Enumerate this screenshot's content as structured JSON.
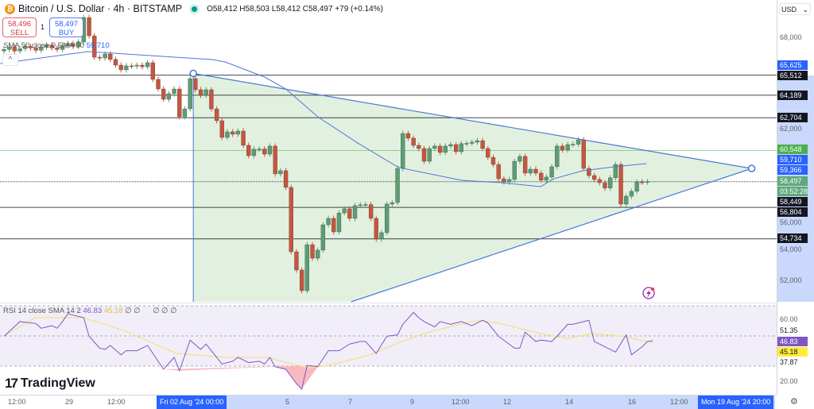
{
  "header": {
    "title": "Bitcoin / U.S. Dollar · 4h · BITSTAMP",
    "ohlc": "O58,412 H58,503 L58,412 C58,497 +79 (+0.14%)",
    "sell_price": "58,496",
    "sell_label": "SELL",
    "buy_price": "58,497",
    "buy_label": "BUY",
    "qty": "1",
    "ma_legend": "SMA 50 close 0 EMA 50",
    "ma_value": "59,710",
    "collapse": "^"
  },
  "rsi_legend": {
    "text": "RSI 14 close SMA 14 2",
    "rsi": "46.83",
    "sma": "45.18",
    "extra1": "∅ ∅",
    "extra2": "∅ ∅ ∅"
  },
  "price_axis": {
    "currency": "USD",
    "ticks": [
      "68,000",
      "62,000",
      "56,000",
      "54,000",
      "52,000"
    ],
    "badges": [
      {
        "v": "65,625",
        "c": "#2962ff"
      },
      {
        "v": "65,512",
        "c": "#131722"
      },
      {
        "v": "64,189",
        "c": "#131722"
      },
      {
        "v": "62,704",
        "c": "#131722"
      },
      {
        "v": "60,548",
        "c": "#4caf50"
      },
      {
        "v": "59,710",
        "c": "#2962ff"
      },
      {
        "v": "59,366",
        "c": "#2962ff"
      },
      {
        "v": "58,497",
        "c": "#5fa87a"
      },
      {
        "v": "58,449",
        "c": "#131722"
      },
      {
        "v": "56,804",
        "c": "#131722"
      },
      {
        "v": "54,734",
        "c": "#131722"
      }
    ],
    "countdown": "03:52:28"
  },
  "rsi_axis": {
    "ticks": [
      "60.00",
      "51.35",
      "37.87",
      "20.00"
    ],
    "rsi_badge": "46.83",
    "sma_badge": "45.18"
  },
  "time_axis": {
    "ticks": [
      "12:00",
      "29",
      "12:00",
      "5",
      "7",
      "9",
      "12:00",
      "12",
      "14",
      "16",
      "12:00"
    ],
    "range_start": "Fri 02 Aug '24  00:00",
    "range_end": "Mon 19 Aug '24  20:00"
  },
  "brand": "TradingView",
  "colors": {
    "up": "#5b9e74",
    "down": "#c8553d",
    "ma": "#4a78d6",
    "zone": "#dff0dc",
    "rsi": "#7e57c2",
    "rsi_sma": "#f5e08a",
    "rsi_bg": "#f1eef9"
  },
  "chart_data": {
    "type": "candlestick",
    "symbol": "BTCUSD",
    "timeframe": "4h",
    "first_open": 67100,
    "closes": [
      67200,
      67350,
      67100,
      67250,
      67400,
      67300,
      67150,
      67350,
      67500,
      67300,
      67200,
      67450,
      67600,
      67400,
      67700,
      69300,
      68100,
      66690,
      66640,
      66900,
      66540,
      66170,
      65860,
      66120,
      66100,
      66170,
      66060,
      66330,
      65230,
      64600,
      63920,
      64290,
      64600,
      62770,
      63290,
      65280,
      64550,
      64180,
      64550,
      63290,
      62510,
      61410,
      61780,
      61620,
      61830,
      60890,
      60210,
      60630,
      60650,
      60310,
      60840,
      59010,
      59220,
      58120,
      53880,
      52680,
      51320,
      54350,
      53460,
      53990,
      55660,
      56080,
      55190,
      56440,
      56710,
      56080,
      56920,
      56970,
      56990,
      56080,
      54720,
      55140,
      57020,
      57120,
      59370,
      61670,
      61360,
      60890,
      60680,
      59840,
      60680,
      60840,
      60420,
      60840,
      60940,
      60470,
      61000,
      61020,
      61100,
      61200,
      60680,
      60100,
      59630,
      58690,
      58480,
      58640,
      59840,
      60160,
      59060,
      59320,
      59060,
      58590,
      58800,
      59480,
      60840,
      60580,
      60940,
      60960,
      61250,
      59370,
      58900,
      58640,
      58430,
      58070,
      58750,
      59630,
      57020,
      57540,
      57860,
      58480,
      58470,
      58497
    ],
    "moving_average": [
      [
        -0.7,
        66275
      ],
      [
        15.7,
        67060
      ],
      [
        39.2,
        66535
      ],
      [
        41.6,
        66380
      ],
      [
        49,
        65385
      ],
      [
        53,
        64600
      ],
      [
        59,
        62770
      ],
      [
        66.5,
        61045
      ],
      [
        74,
        59475
      ],
      [
        75,
        59370
      ],
      [
        86,
        58590
      ],
      [
        93.4,
        58430
      ],
      [
        100.9,
        58170
      ],
      [
        103.4,
        58690
      ],
      [
        108.8,
        59215
      ],
      [
        114.8,
        59475
      ],
      [
        120.8,
        59685
      ]
    ],
    "horizontal_levels": [
      {
        "price": 65512,
        "color": "#131722"
      },
      {
        "price": 64189,
        "color": "#131722"
      },
      {
        "price": 62704,
        "color": "#131722"
      },
      {
        "price": 60548,
        "color": "#4caf50"
      },
      {
        "price": 58497,
        "color": "#131722",
        "style": "dotted"
      },
      {
        "price": 56804,
        "color": "#131722"
      },
      {
        "price": 54734,
        "color": "#131722"
      }
    ],
    "triangle": {
      "apex_left": [
        35.6,
        65625
      ],
      "apex_right": [
        140.6,
        59366
      ],
      "lower_end": [
        65.3,
        50590
      ]
    },
    "ylim": [
      50500,
      70000
    ],
    "rsi": {
      "period": 14,
      "values": [
        [
          0,
          49.8
        ],
        [
          3,
          59.5
        ],
        [
          6,
          58.2
        ],
        [
          7,
          55.1
        ],
        [
          9,
          56.8
        ],
        [
          10,
          55.1
        ],
        [
          11,
          59.5
        ],
        [
          12,
          64.7
        ],
        [
          15,
          62.1
        ],
        [
          16,
          49.8
        ],
        [
          18,
          41.9
        ],
        [
          19,
          41.1
        ],
        [
          20,
          43.7
        ],
        [
          22,
          37.5
        ],
        [
          23,
          40.2
        ],
        [
          25,
          40.2
        ],
        [
          27,
          43.7
        ],
        [
          30,
          27.9
        ],
        [
          32,
          35.8
        ],
        [
          33,
          27
        ],
        [
          35,
          47.2
        ],
        [
          37,
          41.1
        ],
        [
          38,
          44.6
        ],
        [
          41,
          31.4
        ],
        [
          43,
          33.2
        ],
        [
          44,
          35.8
        ],
        [
          46,
          32.3
        ],
        [
          48,
          33.2
        ],
        [
          49,
          31.4
        ],
        [
          50,
          35.8
        ],
        [
          51,
          29.6
        ],
        [
          53,
          27.9
        ],
        [
          55,
          18.3
        ],
        [
          56,
          14.7
        ],
        [
          57,
          30.5
        ],
        [
          59,
          29.6
        ],
        [
          61,
          40.2
        ],
        [
          63,
          40.2
        ],
        [
          65,
          44.6
        ],
        [
          67,
          46.3
        ],
        [
          68,
          46.3
        ],
        [
          70,
          38.4
        ],
        [
          72,
          49.8
        ],
        [
          74,
          50.7
        ],
        [
          75,
          57.7
        ],
        [
          77,
          65.6
        ],
        [
          78,
          62.1
        ],
        [
          79,
          59.5
        ],
        [
          81,
          56
        ],
        [
          82,
          59.5
        ],
        [
          84,
          57.7
        ],
        [
          86,
          59.5
        ],
        [
          88,
          56.8
        ],
        [
          90,
          60.4
        ],
        [
          91,
          58.6
        ],
        [
          93,
          49.8
        ],
        [
          96,
          41.9
        ],
        [
          97,
          41.9
        ],
        [
          98,
          52.5
        ],
        [
          100,
          46.3
        ],
        [
          101,
          47.2
        ],
        [
          103,
          46.3
        ],
        [
          104,
          49.8
        ],
        [
          106,
          57.7
        ],
        [
          107,
          57.7
        ],
        [
          108,
          58.6
        ],
        [
          110,
          60.4
        ],
        [
          111,
          46.3
        ],
        [
          114,
          41.1
        ],
        [
          115,
          39.3
        ],
        [
          117,
          50.7
        ],
        [
          118,
          37.5
        ],
        [
          120,
          42.8
        ],
        [
          121,
          46.3
        ],
        [
          122,
          46.83
        ]
      ],
      "sma": [
        [
          0,
          50
        ],
        [
          9,
          62.1
        ],
        [
          23,
          62.1
        ],
        [
          35,
          53.3
        ],
        [
          50,
          38.4
        ],
        [
          64,
          35.8
        ],
        [
          76,
          35.8
        ],
        [
          88,
          28.8
        ],
        [
          94,
          30.5
        ],
        [
          106,
          37.5
        ],
        [
          115,
          46.3
        ],
        [
          124,
          53.3
        ],
        [
          137,
          60.4
        ],
        [
          143,
          58.6
        ],
        [
          152,
          53.3
        ],
        [
          163,
          48.1
        ],
        [
          170,
          51.6
        ],
        [
          179,
          49.8
        ],
        [
          188,
          45.4
        ]
      ],
      "upper_band": 70,
      "middle_band": 50,
      "lower_band": 30,
      "ylim": [
        10,
        75
      ]
    }
  }
}
